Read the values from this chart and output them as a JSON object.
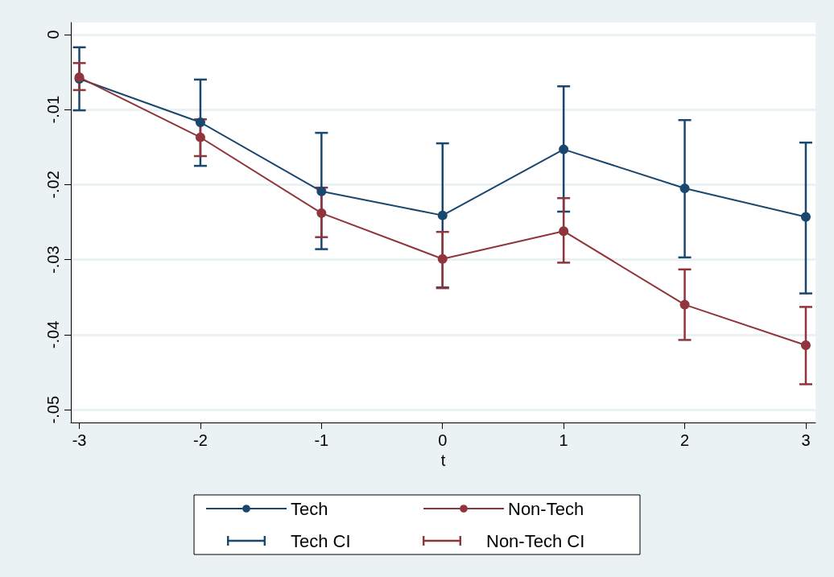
{
  "chart_data": {
    "type": "line",
    "xlabel": "t",
    "x": [
      -3,
      -2,
      -1,
      0,
      1,
      2,
      3
    ],
    "xlim": [
      -3.07,
      3.08
    ],
    "xticks": [
      -3,
      -2,
      -1,
      0,
      1,
      2,
      3
    ],
    "ylim": [
      -0.0517,
      0.0016
    ],
    "yticks": [
      {
        "value": 0,
        "label": "0"
      },
      {
        "value": -0.01,
        "label": "-.01"
      },
      {
        "value": -0.02,
        "label": "-.02"
      },
      {
        "value": -0.03,
        "label": "-.03"
      },
      {
        "value": -0.04,
        "label": "-.04"
      },
      {
        "value": -0.05,
        "label": "-.05"
      }
    ],
    "grid": "y",
    "legend": "bottom",
    "marker": "circle",
    "line_style": "solid",
    "annotations": [
      "Tech CI",
      "Non-Tech CI"
    ],
    "series": [
      {
        "name": "Tech",
        "color": "#1a476f",
        "values": [
          -0.0059,
          -0.0117,
          -0.0209,
          -0.0241,
          -0.0153,
          -0.0205,
          -0.0243
        ],
        "errors": [
          [
            -0.0101,
            -0.0017
          ],
          [
            -0.0175,
            -0.006
          ],
          [
            -0.0286,
            -0.0131
          ],
          [
            -0.0337,
            -0.0145
          ],
          [
            -0.0236,
            -0.0069
          ],
          [
            -0.0297,
            -0.0114
          ],
          [
            -0.0345,
            -0.0144
          ]
        ]
      },
      {
        "name": "Non-Tech",
        "color": "#90353b",
        "values": [
          -0.0057,
          -0.0137,
          -0.0238,
          -0.0299,
          -0.0262,
          -0.036,
          -0.0414
        ],
        "errors": [
          [
            -0.0074,
            -0.0038
          ],
          [
            -0.0162,
            -0.0113
          ],
          [
            -0.027,
            -0.0204
          ],
          [
            -0.0338,
            -0.0263
          ],
          [
            -0.0304,
            -0.0218
          ],
          [
            -0.0407,
            -0.0313
          ],
          [
            -0.0466,
            -0.0363
          ]
        ]
      }
    ]
  }
}
